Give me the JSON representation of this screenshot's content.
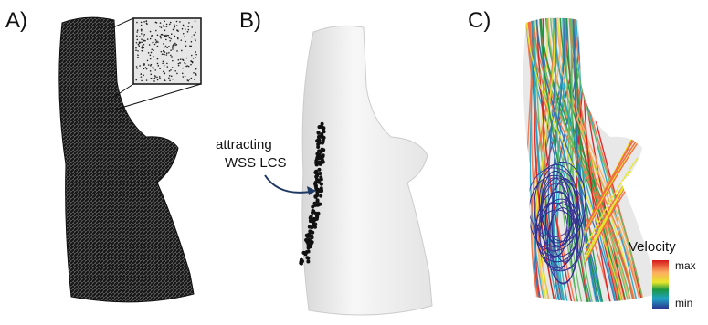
{
  "panels": [
    {
      "label": "A)"
    },
    {
      "label": "B)",
      "annotation": [
        "attracting",
        "WSS LCS"
      ]
    },
    {
      "label": "C)",
      "legend": {
        "title": "Velocity",
        "max": "max",
        "min": "min"
      }
    }
  ]
}
